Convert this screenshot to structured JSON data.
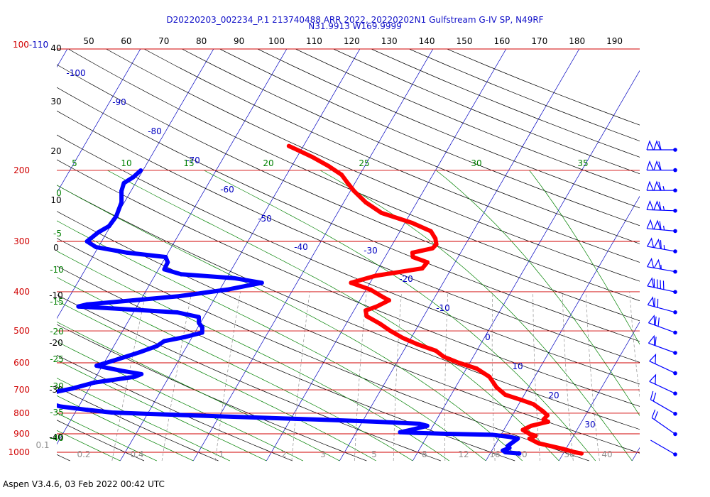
{
  "header": {
    "title_line1": "D20220203_002234_P.1 213740488 ARR 2022, 20220202N1 Gulfstream G-IV SP, N49RF",
    "title_line2": "N31.9913 W169.9999"
  },
  "footer": {
    "version": "Aspen V3.4.6, 03 Feb 2022  00:42 UTC"
  },
  "colors": {
    "isobar": "#d00000",
    "isotherm": "#0000c0",
    "dry_adiabat": "#000000",
    "moist_adiabat": "#008000",
    "temperature": "#ff0000",
    "dewpoint": "#0000ff",
    "mixing_ratio": "#909090"
  },
  "chart_data": {
    "type": "line",
    "chart_kind": "skew-T log-P sounding",
    "title": "D20220203_002234_P.1 213740488 ARR 2022, 20220202N1 Gulfstream G-IV SP, N49RF",
    "subtitle": "N31.9913 W169.9999",
    "y_scale": "log",
    "ylim": [
      1000,
      100
    ],
    "pressure_labels": [
      "100-110",
      "200",
      "300",
      "400",
      "500",
      "600",
      "700",
      "800",
      "900",
      "1000"
    ],
    "pressure_values": [
      100,
      200,
      300,
      400,
      500,
      600,
      700,
      800,
      900,
      1000
    ],
    "top_scale_labels": [
      "50",
      "60",
      "70",
      "80",
      "90",
      "100",
      "110",
      "120",
      "130",
      "140",
      "150",
      "160",
      "170",
      "180",
      "190"
    ],
    "left_scale_labels": [
      "40",
      "30",
      "20",
      "10",
      "0",
      "-10",
      "-20",
      "-30",
      "-40"
    ],
    "isotherm_labels": [
      "-100",
      "-90",
      "-80",
      "-70",
      "-60",
      "-50",
      "-40",
      "-30",
      "-20",
      "-10",
      "0",
      "10",
      "20",
      "30"
    ],
    "moist_adiabat_labels": [
      "5",
      "10",
      "15",
      "20",
      "25",
      "30",
      "35"
    ],
    "dry_adiabat_labels": [
      "0",
      "-5",
      "-10",
      "-15",
      "-20",
      "-25",
      "-30",
      "-35",
      "-40"
    ],
    "mixing_ratio_labels": [
      "0.1",
      "0.2",
      "0.4",
      "1",
      "2",
      "3",
      "5",
      "8",
      "12",
      "16",
      "20",
      "30",
      "40"
    ],
    "series": [
      {
        "name": "Temperature",
        "points": [
          {
            "p": 1007,
            "t": 22.5
          },
          {
            "p": 1000,
            "t": 21.5
          },
          {
            "p": 980,
            "t": 19.5
          },
          {
            "p": 950,
            "t": 15.8
          },
          {
            "p": 925,
            "t": 14.2
          },
          {
            "p": 910,
            "t": 14.8
          },
          {
            "p": 900,
            "t": 13.8
          },
          {
            "p": 880,
            "t": 12.6
          },
          {
            "p": 860,
            "t": 13.4
          },
          {
            "p": 840,
            "t": 15.4
          },
          {
            "p": 830,
            "t": 14.6
          },
          {
            "p": 810,
            "t": 14.8
          },
          {
            "p": 790,
            "t": 13.8
          },
          {
            "p": 760,
            "t": 12.0
          },
          {
            "p": 740,
            "t": 9.8
          },
          {
            "p": 720,
            "t": 7.4
          },
          {
            "p": 690,
            "t": 5.6
          },
          {
            "p": 650,
            "t": 3.8
          },
          {
            "p": 620,
            "t": 1.4
          },
          {
            "p": 600,
            "t": -1.5
          },
          {
            "p": 580,
            "t": -4.0
          },
          {
            "p": 560,
            "t": -5.6
          },
          {
            "p": 540,
            "t": -8.6
          },
          {
            "p": 520,
            "t": -11.2
          },
          {
            "p": 500,
            "t": -13.4
          },
          {
            "p": 480,
            "t": -15.4
          },
          {
            "p": 460,
            "t": -17.8
          },
          {
            "p": 445,
            "t": -18.4
          },
          {
            "p": 435,
            "t": -17.2
          },
          {
            "p": 420,
            "t": -16.0
          },
          {
            "p": 410,
            "t": -17.4
          },
          {
            "p": 395,
            "t": -19.4
          },
          {
            "p": 380,
            "t": -22.6
          },
          {
            "p": 365,
            "t": -19.8
          },
          {
            "p": 350,
            "t": -14.0
          },
          {
            "p": 338,
            "t": -13.8
          },
          {
            "p": 328,
            "t": -16.2
          },
          {
            "p": 320,
            "t": -16.6
          },
          {
            "p": 312,
            "t": -14.2
          },
          {
            "p": 305,
            "t": -14.0
          },
          {
            "p": 295,
            "t": -14.6
          },
          {
            "p": 283,
            "t": -15.8
          },
          {
            "p": 270,
            "t": -19.0
          },
          {
            "p": 255,
            "t": -24.0
          },
          {
            "p": 240,
            "t": -27.0
          },
          {
            "p": 225,
            "t": -29.5
          },
          {
            "p": 215,
            "t": -31.0
          },
          {
            "p": 205,
            "t": -32.5
          },
          {
            "p": 195,
            "t": -35.0
          },
          {
            "p": 185,
            "t": -38.0
          },
          {
            "p": 178,
            "t": -40.5
          },
          {
            "p": 174,
            "t": -42.0
          }
        ]
      },
      {
        "name": "Dewpoint",
        "points": [
          {
            "p": 1007,
            "t": 14.0
          },
          {
            "p": 1000,
            "t": 12.0
          },
          {
            "p": 990,
            "t": 11.5
          },
          {
            "p": 975,
            "t": 12.2
          },
          {
            "p": 965,
            "t": 11.8
          },
          {
            "p": 950,
            "t": 12.1
          },
          {
            "p": 935,
            "t": 12.4
          },
          {
            "p": 925,
            "t": 12.6
          },
          {
            "p": 915,
            "t": 11.2
          },
          {
            "p": 905,
            "t": 8.8
          },
          {
            "p": 900,
            "t": 2.5
          },
          {
            "p": 895,
            "t": -2.0
          },
          {
            "p": 892,
            "t": -4.0
          },
          {
            "p": 878,
            "t": -2.5
          },
          {
            "p": 860,
            "t": -0.8
          },
          {
            "p": 850,
            "t": -2.0
          },
          {
            "p": 840,
            "t": -8.0
          },
          {
            "p": 830,
            "t": -16.0
          },
          {
            "p": 820,
            "t": -25.0
          },
          {
            "p": 810,
            "t": -34.0
          },
          {
            "p": 803,
            "t": -40.0
          },
          {
            "p": 797,
            "t": -45.0
          },
          {
            "p": 785,
            "t": -48.5
          },
          {
            "p": 770,
            "t": -52.5
          },
          {
            "p": 755,
            "t": -54.5
          },
          {
            "p": 738,
            "t": -55.0
          },
          {
            "p": 725,
            "t": -55.6
          },
          {
            "p": 712,
            "t": -54.8
          },
          {
            "p": 695,
            "t": -52.3
          },
          {
            "p": 672,
            "t": -49.8
          },
          {
            "p": 650,
            "t": -44.7
          },
          {
            "p": 640,
            "t": -44.0
          },
          {
            "p": 628,
            "t": -47.0
          },
          {
            "p": 610,
            "t": -50.8
          },
          {
            "p": 590,
            "t": -48.6
          },
          {
            "p": 565,
            "t": -46.0
          },
          {
            "p": 545,
            "t": -44.1
          },
          {
            "p": 530,
            "t": -43.5
          },
          {
            "p": 518,
            "t": -41.0
          },
          {
            "p": 505,
            "t": -39.0
          },
          {
            "p": 490,
            "t": -39.4
          },
          {
            "p": 478,
            "t": -40.2
          },
          {
            "p": 462,
            "t": -40.7
          },
          {
            "p": 450,
            "t": -44.0
          },
          {
            "p": 440,
            "t": -53.0
          },
          {
            "p": 435,
            "t": -58.0
          },
          {
            "p": 430,
            "t": -57.0
          },
          {
            "p": 420,
            "t": -51.0
          },
          {
            "p": 410,
            "t": -45.0
          },
          {
            "p": 395,
            "t": -39.0
          },
          {
            "p": 380,
            "t": -34.8
          },
          {
            "p": 370,
            "t": -39.0
          },
          {
            "p": 362,
            "t": -46.5
          },
          {
            "p": 352,
            "t": -49.2
          },
          {
            "p": 338,
            "t": -49.3
          },
          {
            "p": 328,
            "t": -50.0
          },
          {
            "p": 320,
            "t": -55.6
          },
          {
            "p": 310,
            "t": -60.3
          },
          {
            "p": 300,
            "t": -62.0
          },
          {
            "p": 285,
            "t": -61.2
          },
          {
            "p": 275,
            "t": -60.2
          },
          {
            "p": 260,
            "t": -60.0
          },
          {
            "p": 240,
            "t": -60.4
          },
          {
            "p": 225,
            "t": -61.3
          },
          {
            "p": 215,
            "t": -61.6
          },
          {
            "p": 208,
            "t": -60.8
          },
          {
            "p": 200,
            "t": -60.3
          }
        ]
      }
    ],
    "wind_barbs": [
      {
        "p": 205,
        "speed_kt": 110,
        "dir_deg": 270
      },
      {
        "p": 228,
        "speed_kt": 110,
        "dir_deg": 270
      },
      {
        "p": 254,
        "speed_kt": 115,
        "dir_deg": 270
      },
      {
        "p": 283,
        "speed_kt": 115,
        "dir_deg": 272
      },
      {
        "p": 315,
        "speed_kt": 115,
        "dir_deg": 275
      },
      {
        "p": 350,
        "speed_kt": 115,
        "dir_deg": 280
      },
      {
        "p": 390,
        "speed_kt": 105,
        "dir_deg": 280
      },
      {
        "p": 430,
        "speed_kt": 90,
        "dir_deg": 282
      },
      {
        "p": 475,
        "speed_kt": 70,
        "dir_deg": 285
      },
      {
        "p": 525,
        "speed_kt": 70,
        "dir_deg": 290
      },
      {
        "p": 585,
        "speed_kt": 60,
        "dir_deg": 290
      },
      {
        "p": 655,
        "speed_kt": 50,
        "dir_deg": 295
      },
      {
        "p": 735,
        "speed_kt": 50,
        "dir_deg": 295
      },
      {
        "p": 825,
        "speed_kt": 20,
        "dir_deg": 300
      },
      {
        "p": 925,
        "speed_kt": 20,
        "dir_deg": 305
      },
      {
        "p": 1000,
        "speed_kt": 0,
        "dir_deg": 300
      }
    ]
  }
}
